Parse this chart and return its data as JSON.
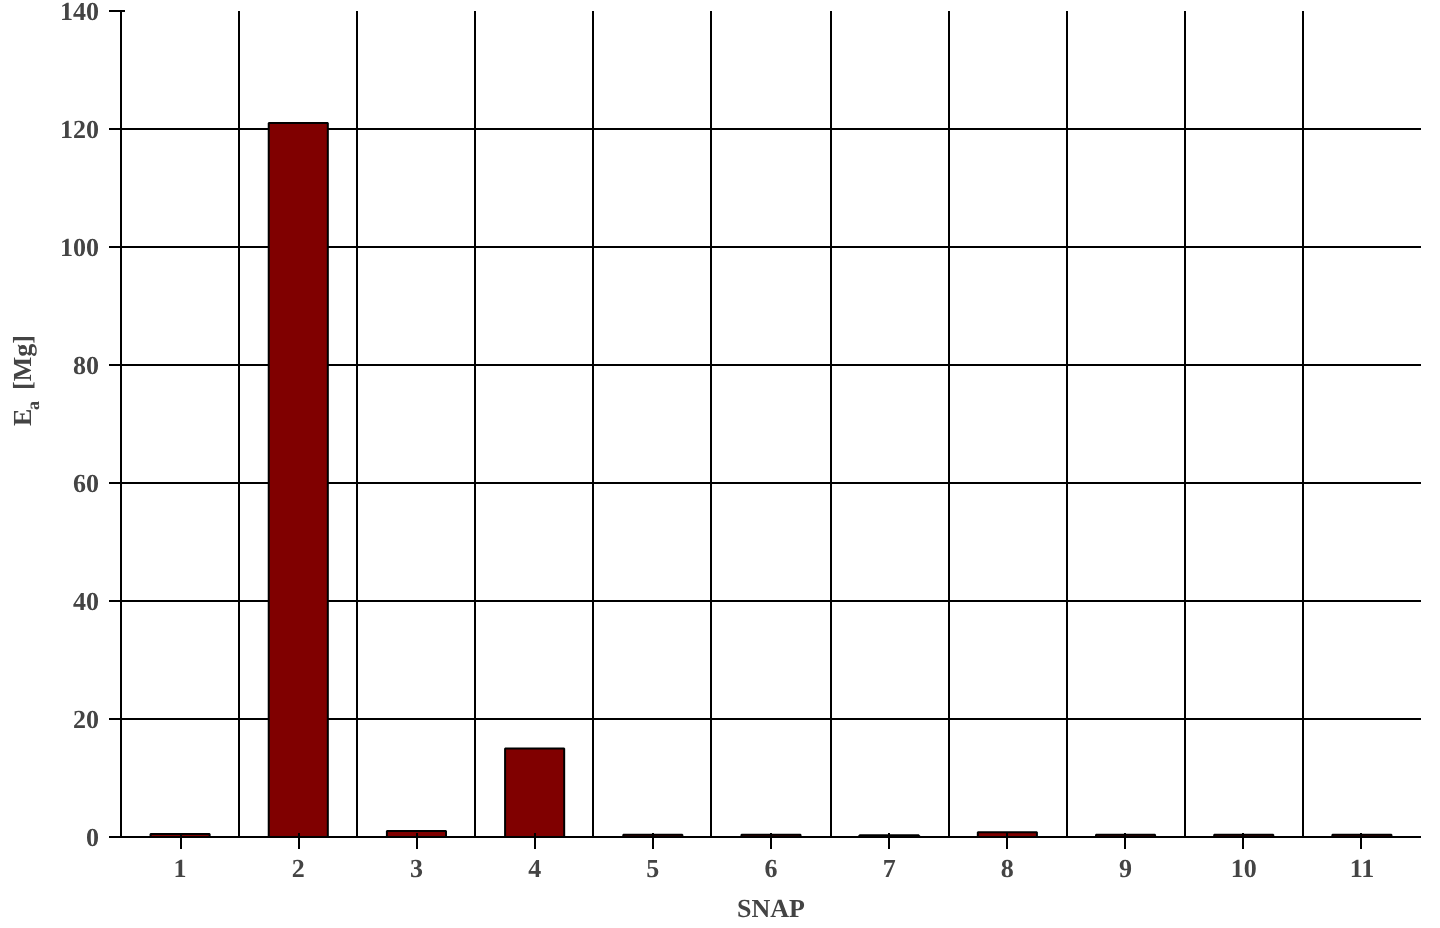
{
  "chart_data": {
    "type": "bar",
    "xlabel": "SNAP",
    "ylabel": "E$_{a}$ [Mg]",
    "categories": [
      "1",
      "2",
      "3",
      "4",
      "5",
      "6",
      "7",
      "8",
      "9",
      "10",
      "11"
    ],
    "values": [
      0.5,
      121,
      1,
      15,
      0.4,
      0.4,
      0.3,
      0.8,
      0.4,
      0.4,
      0.4
    ],
    "color": "#800000",
    "ylim": [
      0,
      140
    ],
    "yticks": [
      0,
      20,
      40,
      60,
      80,
      100,
      120,
      140
    ],
    "grid": true
  }
}
